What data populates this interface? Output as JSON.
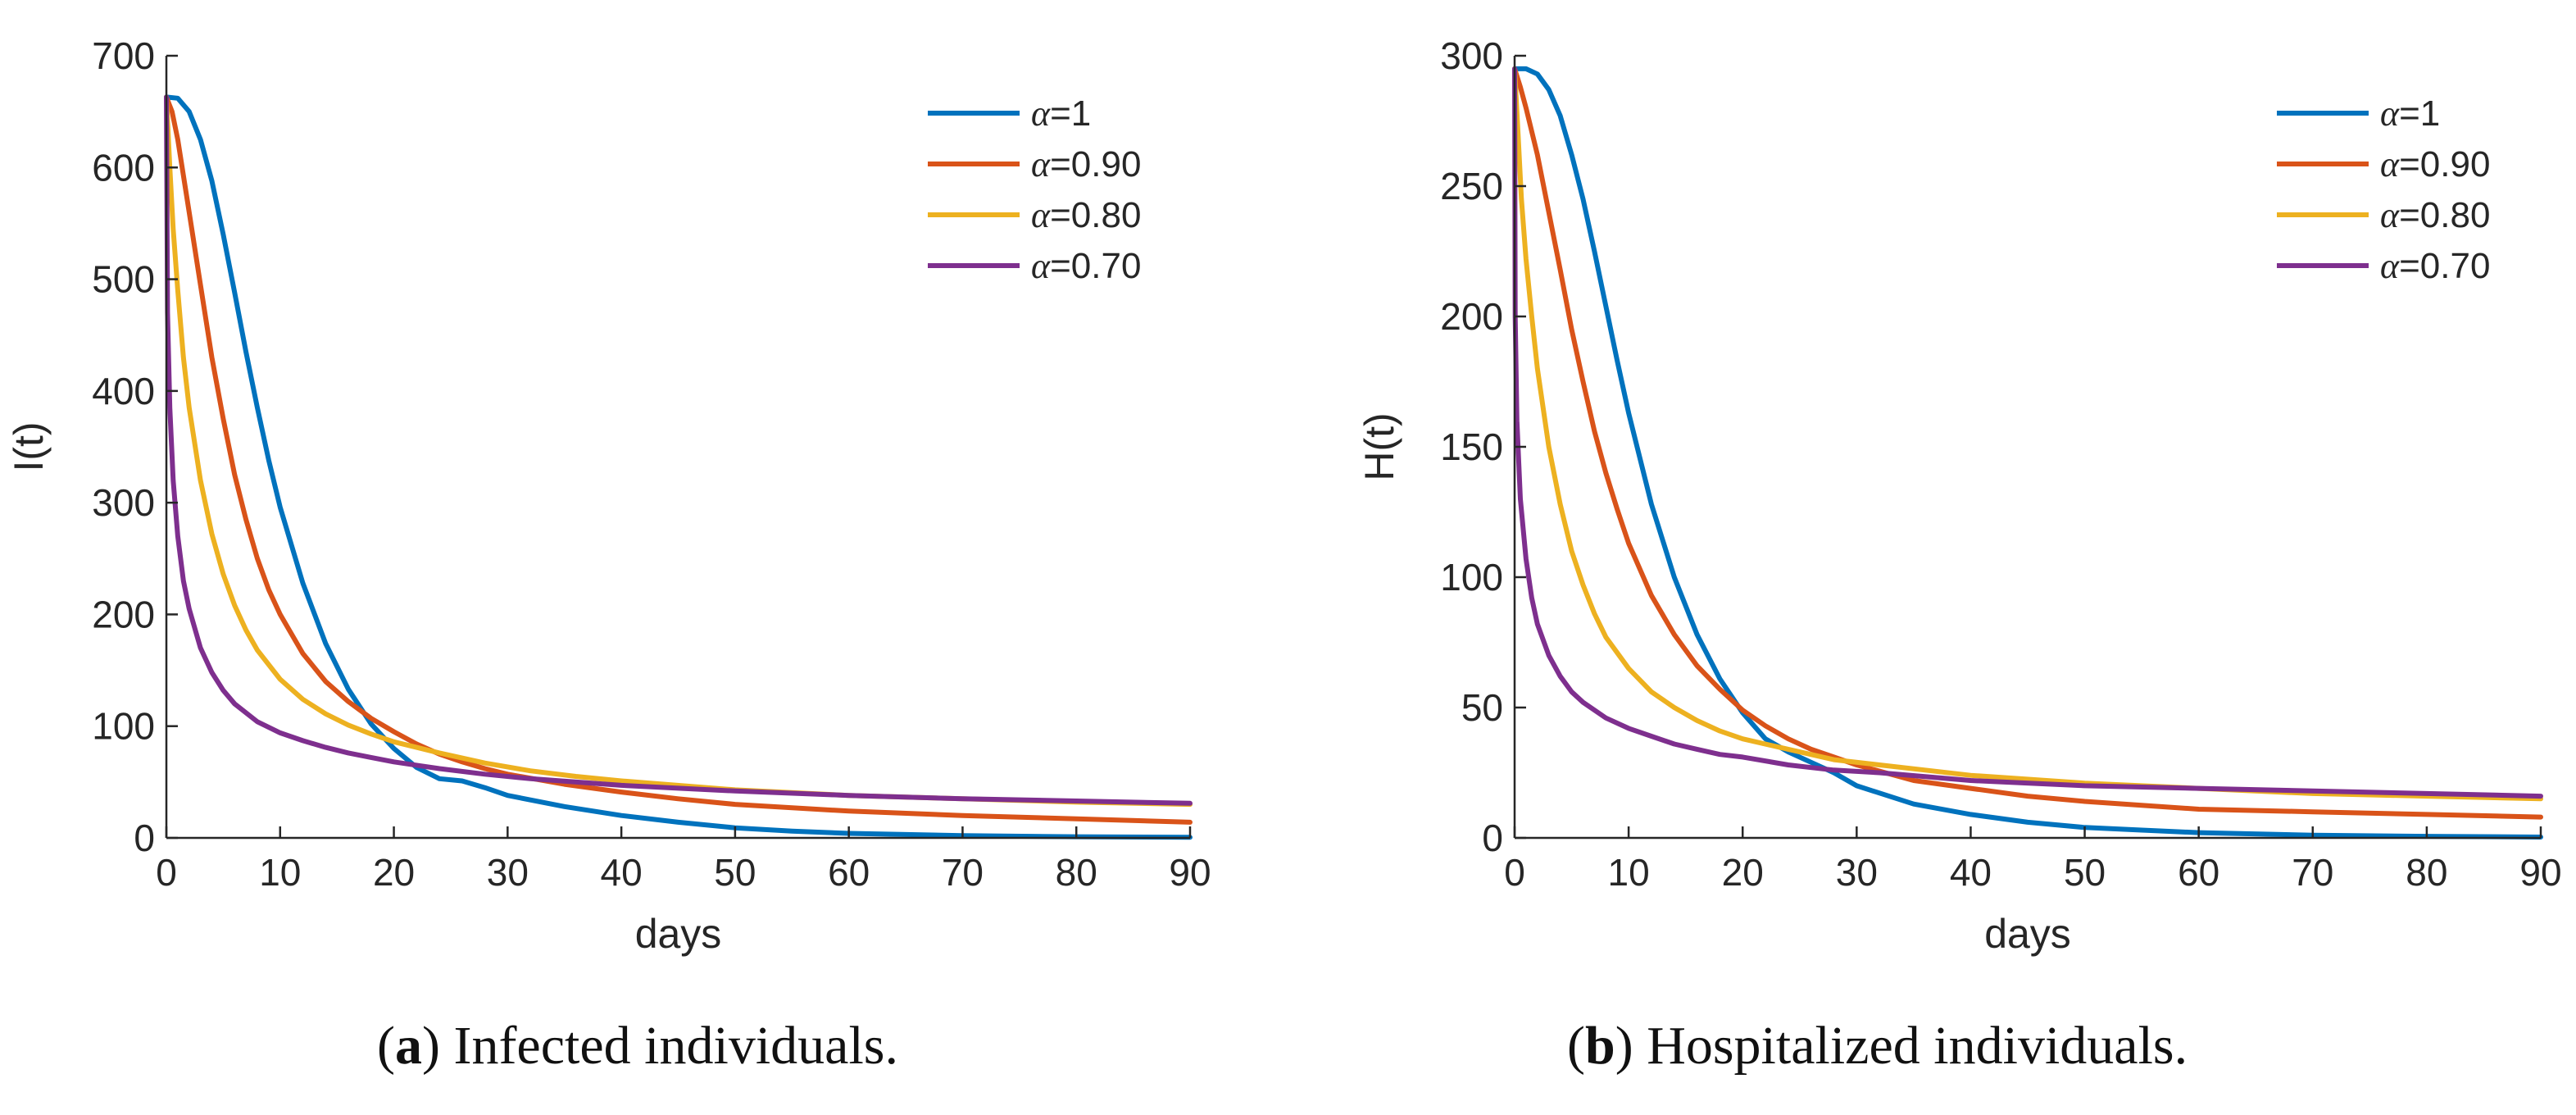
{
  "chart_data": [
    {
      "type": "line",
      "panel_label": "a",
      "caption": "Infected individuals.",
      "xlabel": "days",
      "ylabel": "I(t)",
      "xlim": [
        0,
        90
      ],
      "ylim": [
        0,
        700
      ],
      "xticks": [
        0,
        10,
        20,
        30,
        40,
        50,
        60,
        70,
        80,
        90
      ],
      "yticks": [
        0,
        100,
        200,
        300,
        400,
        500,
        600,
        700
      ],
      "legend_position": "top-right",
      "series": [
        {
          "name": "α=1",
          "symbol": "α",
          "value_text": "=1",
          "color": "#0072BD",
          "x": [
            0,
            1,
            2,
            3,
            4,
            5,
            6,
            7,
            8,
            9,
            10,
            12,
            14,
            16,
            18,
            20,
            22,
            24,
            26,
            28,
            30,
            35,
            40,
            45,
            50,
            55,
            60,
            70,
            80,
            90
          ],
          "y": [
            663,
            662,
            650,
            625,
            588,
            540,
            488,
            435,
            385,
            338,
            296,
            228,
            174,
            133,
            102,
            80,
            63,
            53,
            51,
            45,
            38,
            28,
            20,
            14,
            9,
            6,
            4,
            2,
            1,
            0.5
          ]
        },
        {
          "name": "α=0.90",
          "symbol": "α",
          "value_text": "=0.90",
          "color": "#D95319",
          "x": [
            0,
            0.5,
            1,
            2,
            3,
            4,
            5,
            6,
            7,
            8,
            9,
            10,
            12,
            14,
            16,
            18,
            20,
            22,
            24,
            26,
            28,
            30,
            35,
            40,
            45,
            50,
            60,
            70,
            80,
            90
          ],
          "y": [
            663,
            650,
            625,
            560,
            495,
            430,
            375,
            325,
            285,
            250,
            222,
            200,
            165,
            140,
            122,
            107,
            95,
            84,
            75,
            68,
            62,
            57,
            48,
            41,
            35,
            30,
            24,
            20,
            17,
            14
          ]
        },
        {
          "name": "α=0.80",
          "symbol": "α",
          "value_text": "=0.80",
          "color": "#EDB120",
          "x": [
            0,
            0.3,
            0.6,
            1,
            1.5,
            2,
            3,
            4,
            5,
            6,
            7,
            8,
            10,
            12,
            14,
            16,
            18,
            20,
            24,
            28,
            32,
            36,
            40,
            50,
            60,
            70,
            80,
            90
          ],
          "y": [
            663,
            600,
            545,
            490,
            430,
            385,
            320,
            272,
            236,
            208,
            186,
            168,
            142,
            124,
            111,
            101,
            93,
            86,
            76,
            67,
            60,
            55,
            51,
            43,
            38,
            35,
            32,
            30
          ]
        },
        {
          "name": "α=0.70",
          "symbol": "α",
          "value_text": "=0.70",
          "color": "#7E2F8E",
          "x": [
            0,
            0.1,
            0.3,
            0.6,
            1,
            1.5,
            2,
            3,
            4,
            5,
            6,
            8,
            10,
            12,
            14,
            16,
            18,
            20,
            24,
            28,
            32,
            40,
            50,
            60,
            70,
            80,
            90
          ],
          "y": [
            663,
            470,
            385,
            320,
            270,
            230,
            205,
            170,
            148,
            132,
            120,
            104,
            94,
            87,
            81,
            76,
            72,
            68,
            62,
            57,
            53,
            47,
            42,
            38,
            35,
            33,
            31
          ]
        }
      ]
    },
    {
      "type": "line",
      "panel_label": "b",
      "caption": "Hospitalized individuals.",
      "xlabel": "days",
      "ylabel": "H(t)",
      "xlim": [
        0,
        90
      ],
      "ylim": [
        0,
        300
      ],
      "xticks": [
        0,
        10,
        20,
        30,
        40,
        50,
        60,
        70,
        80,
        90
      ],
      "yticks": [
        0,
        50,
        100,
        150,
        200,
        250,
        300
      ],
      "legend_position": "top-right",
      "series": [
        {
          "name": "α=1",
          "symbol": "α",
          "value_text": "=1",
          "color": "#0072BD",
          "x": [
            0,
            1,
            2,
            3,
            4,
            5,
            6,
            7,
            8,
            9,
            10,
            12,
            14,
            16,
            18,
            20,
            22,
            24,
            26,
            28,
            30,
            35,
            40,
            45,
            50,
            55,
            60,
            70,
            80,
            90
          ],
          "y": [
            295,
            295,
            293,
            287,
            277,
            262,
            245,
            225,
            204,
            183,
            163,
            128,
            100,
            78,
            61,
            48,
            38,
            33,
            29,
            25,
            20,
            13,
            9,
            6,
            4,
            3,
            2,
            1,
            0.6,
            0.3
          ]
        },
        {
          "name": "α=0.90",
          "symbol": "α",
          "value_text": "=0.90",
          "color": "#D95319",
          "x": [
            0,
            0.5,
            1,
            2,
            3,
            4,
            5,
            6,
            7,
            8,
            9,
            10,
            12,
            14,
            16,
            18,
            20,
            22,
            24,
            26,
            28,
            30,
            35,
            40,
            45,
            50,
            60,
            70,
            80,
            90
          ],
          "y": [
            295,
            288,
            280,
            262,
            240,
            218,
            195,
            175,
            156,
            140,
            126,
            113,
            93,
            78,
            66,
            57,
            49,
            43,
            38,
            34,
            31,
            28,
            22,
            19,
            16,
            14,
            11,
            10,
            9,
            8
          ]
        },
        {
          "name": "α=0.80",
          "symbol": "α",
          "value_text": "=0.80",
          "color": "#EDB120",
          "x": [
            0,
            0.3,
            0.6,
            1,
            1.5,
            2,
            3,
            4,
            5,
            6,
            7,
            8,
            10,
            12,
            14,
            16,
            18,
            20,
            24,
            28,
            32,
            36,
            40,
            50,
            60,
            70,
            80,
            90
          ],
          "y": [
            295,
            270,
            245,
            222,
            200,
            180,
            150,
            128,
            110,
            97,
            86,
            77,
            65,
            56,
            50,
            45,
            41,
            38,
            34,
            30,
            28,
            26,
            24,
            21,
            19,
            17,
            16,
            15
          ]
        },
        {
          "name": "α=0.70",
          "symbol": "α",
          "value_text": "=0.70",
          "color": "#7E2F8E",
          "x": [
            0,
            0.05,
            0.2,
            0.5,
            1,
            1.5,
            2,
            3,
            4,
            5,
            6,
            8,
            10,
            12,
            14,
            16,
            18,
            20,
            24,
            28,
            32,
            40,
            50,
            60,
            70,
            80,
            90
          ],
          "y": [
            295,
            200,
            160,
            130,
            107,
            92,
            82,
            70,
            62,
            56,
            52,
            46,
            42,
            39,
            36,
            34,
            32,
            31,
            28,
            26,
            25,
            22,
            20,
            19,
            18,
            17,
            16
          ]
        }
      ]
    }
  ]
}
